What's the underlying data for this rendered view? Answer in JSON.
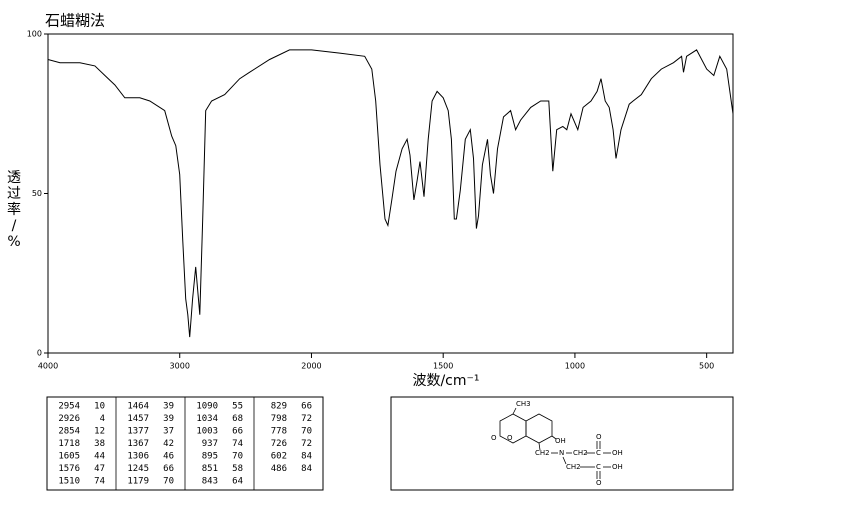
{
  "chart_data": {
    "type": "line",
    "title": "石蜡糊法",
    "x_label": "波数/cm⁻¹",
    "y_label": "透过率/%",
    "xlim": [
      4000,
      400
    ],
    "xticks": [
      4000,
      3000,
      2000,
      1500,
      1000,
      500
    ],
    "ylim": [
      0,
      100
    ],
    "yticks": [
      0,
      50,
      100
    ],
    "x": [
      4000,
      3909,
      3758,
      3644,
      3568,
      3492,
      3417,
      3303,
      3227,
      3114,
      3061,
      3030,
      3000,
      2977,
      2955,
      2939,
      2924,
      2902,
      2879,
      2864,
      2848,
      2826,
      2803,
      2758,
      2659,
      2545,
      2470,
      2318,
      2167,
      2000,
      1893,
      1798,
      1771,
      1756,
      1740,
      1721,
      1710,
      1695,
      1679,
      1656,
      1637,
      1626,
      1611,
      1599,
      1588,
      1573,
      1557,
      1542,
      1523,
      1500,
      1481,
      1469,
      1458,
      1450,
      1435,
      1416,
      1397,
      1385,
      1374,
      1366,
      1351,
      1332,
      1321,
      1309,
      1294,
      1271,
      1244,
      1225,
      1206,
      1168,
      1130,
      1099,
      1084,
      1069,
      1046,
      1031,
      1015,
      989,
      969,
      939,
      916,
      901,
      885,
      870,
      855,
      844,
      825,
      794,
      779,
      748,
      710,
      672,
      626,
      595,
      588,
      576,
      538,
      500,
      473,
      450,
      424,
      400
    ],
    "series": [
      {
        "color": "#000000",
        "values": [
          92,
          91,
          91,
          90,
          87,
          84,
          80,
          80,
          79,
          76,
          68,
          65,
          56,
          35,
          17,
          12,
          5,
          17,
          27,
          20,
          12,
          42,
          76,
          79,
          81,
          86,
          88,
          92,
          95,
          95,
          94,
          93,
          89,
          79,
          59,
          42,
          40,
          48,
          57,
          64,
          67,
          62,
          48,
          54,
          60,
          49,
          67,
          79,
          82,
          80,
          76,
          67,
          42,
          42,
          51,
          67,
          70,
          61,
          39,
          43,
          59,
          67,
          56,
          50,
          64,
          74,
          76,
          70,
          73,
          77,
          79,
          79,
          57,
          70,
          71,
          70,
          75,
          70,
          77,
          79,
          82,
          86,
          79,
          77,
          70,
          61,
          70,
          78,
          79,
          81,
          86,
          89,
          91,
          93,
          88,
          93,
          95,
          89,
          87,
          93,
          89,
          75
        ]
      }
    ]
  },
  "peak_table": {
    "rows": [
      [
        2954,
        10,
        1464,
        39,
        1090,
        55,
        829,
        66
      ],
      [
        2926,
        4,
        1457,
        39,
        1034,
        68,
        798,
        72
      ],
      [
        2854,
        12,
        1377,
        37,
        1003,
        66,
        778,
        70
      ],
      [
        1718,
        38,
        1367,
        42,
        937,
        74,
        726,
        72
      ],
      [
        1605,
        44,
        1306,
        46,
        895,
        70,
        602,
        84
      ],
      [
        1576,
        47,
        1245,
        66,
        851,
        58,
        486,
        84
      ],
      [
        1510,
        74,
        1179,
        70,
        843,
        64
      ]
    ]
  },
  "structure": {
    "labels": [
      "CH3",
      "O",
      "O",
      "OH",
      "CH2",
      "N",
      "CH2",
      "O",
      "C",
      "OH",
      "CH2",
      "C",
      "OH",
      "O"
    ]
  }
}
